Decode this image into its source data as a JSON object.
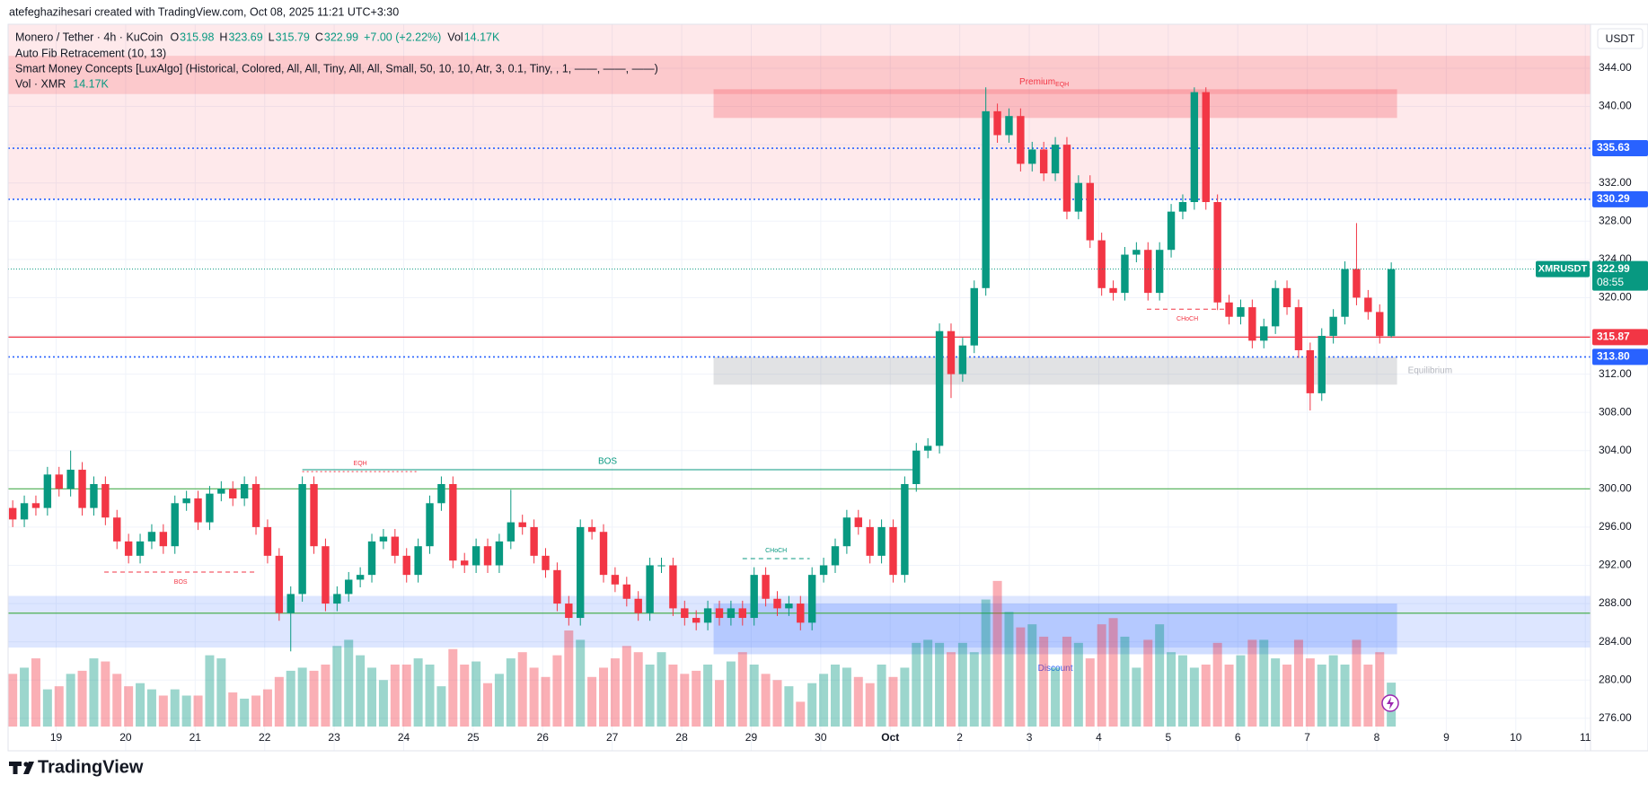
{
  "header": "atefeghazihesari created with TradingView.com, Oct 08, 2025 11:21 UTC+3:30",
  "legend": {
    "symbol": "Monero / Tether · 4h · KuCoin",
    "ohlc": [
      {
        "key": "O",
        "value": "315.98"
      },
      {
        "key": "H",
        "value": "323.69"
      },
      {
        "key": "L",
        "value": "315.79"
      },
      {
        "key": "C",
        "value": "322.99"
      }
    ],
    "change": "+7.00 (+2.22%)",
    "vol_key": "Vol",
    "vol_value": "14.17K",
    "indicators": [
      "Auto Fib Retracement (10, 13)",
      "Smart Money Concepts [LuxAlgo] (Historical, Colored, All, All, Tiny, All, All, Small, 50, 10, 10, Atr, 3, 0.1, Tiny, , 1, ——, ——, ——)"
    ],
    "vol_indicator": "Vol · XMR",
    "vol_indicator_value": "14.17K"
  },
  "brand": "TradingView",
  "chart_data": {
    "type": "candlestick",
    "currency": "USDT",
    "up_color": "#089981",
    "down_color": "#f23645",
    "open": [
      298.0,
      296.8,
      298.5,
      298.0,
      301.5,
      300.0,
      302.0,
      298.0,
      300.5,
      297.0,
      294.5,
      293.0,
      294.5,
      295.5,
      294.0,
      298.5,
      299.0,
      296.5,
      299.5,
      300.0,
      299.0,
      300.5,
      296.0,
      293.0,
      287.0,
      289.0,
      300.5,
      294.0,
      288.0,
      289.0,
      290.5,
      291.0,
      294.5,
      295.0,
      293.0,
      291.0,
      294.0,
      298.5,
      300.5,
      292.5,
      292.0,
      294.0,
      292.0,
      294.5,
      296.5,
      296.0,
      293.0,
      291.5,
      288.0,
      286.5,
      296.0,
      295.5,
      291.0,
      290.0,
      288.5,
      287.0,
      292.0,
      292.0,
      287.5,
      286.5,
      286.0,
      287.5,
      286.5,
      287.5,
      286.5,
      291.0,
      288.5,
      287.5,
      288.0,
      286.0,
      291.0,
      292.0,
      294.0,
      297.0,
      296.0,
      293.0,
      296.0,
      291.0,
      300.5,
      304.0,
      304.5,
      316.5,
      312.0,
      315.0,
      321.0,
      339.5,
      337.0,
      339.0,
      334.0,
      335.5,
      333.0,
      336.0,
      329.0,
      332.0,
      326.0,
      321.0,
      320.5,
      324.5,
      325.0,
      320.5,
      325.0,
      329.0,
      330.0,
      341.5,
      330.0,
      319.5,
      318.0,
      319.0,
      315.5,
      317.0,
      321.0,
      319.0,
      314.5,
      310.0,
      316.0,
      318.0,
      323.0,
      320.0,
      318.5,
      315.98
    ],
    "high": [
      298.8,
      299.3,
      299.3,
      302.3,
      302.3,
      304.0,
      302.8,
      301.3,
      301.3,
      297.8,
      295.3,
      295.3,
      296.3,
      296.3,
      299.3,
      299.8,
      299.8,
      300.3,
      300.8,
      300.8,
      301.3,
      301.3,
      296.8,
      293.8,
      289.8,
      301.3,
      301.3,
      294.8,
      289.8,
      291.3,
      291.8,
      295.3,
      295.8,
      295.8,
      293.8,
      294.8,
      299.3,
      301.3,
      301.3,
      293.3,
      294.8,
      294.8,
      295.3,
      299.9,
      297.3,
      296.8,
      293.8,
      292.3,
      288.8,
      296.8,
      296.8,
      296.3,
      291.8,
      290.8,
      289.3,
      292.8,
      292.8,
      292.8,
      288.3,
      287.3,
      288.3,
      288.3,
      288.3,
      288.3,
      291.8,
      291.8,
      289.3,
      288.8,
      288.8,
      291.8,
      292.8,
      294.8,
      297.8,
      297.8,
      296.8,
      296.8,
      296.8,
      301.3,
      304.8,
      305.3,
      317.3,
      317.3,
      315.8,
      321.8,
      342.0,
      340.3,
      339.8,
      339.8,
      336.3,
      336.3,
      336.8,
      336.8,
      332.8,
      332.8,
      326.8,
      321.8,
      325.3,
      325.8,
      325.8,
      325.8,
      329.8,
      330.8,
      342.0,
      342.0,
      330.8,
      320.3,
      319.8,
      319.8,
      317.8,
      321.8,
      321.8,
      319.8,
      315.3,
      316.8,
      318.8,
      323.8,
      327.8,
      320.8,
      319.3,
      323.69
    ],
    "low": [
      296.0,
      296.0,
      297.2,
      297.2,
      299.2,
      299.2,
      297.2,
      297.2,
      296.2,
      293.7,
      292.2,
      292.2,
      293.7,
      293.2,
      293.2,
      297.7,
      295.7,
      295.7,
      298.7,
      298.2,
      298.2,
      295.2,
      292.2,
      286.2,
      283.0,
      288.2,
      293.2,
      287.2,
      287.2,
      288.2,
      289.7,
      290.2,
      293.7,
      292.2,
      290.2,
      290.2,
      293.2,
      297.7,
      291.7,
      291.2,
      291.2,
      291.2,
      291.2,
      293.7,
      295.2,
      292.2,
      290.7,
      287.2,
      285.7,
      285.7,
      294.7,
      290.2,
      289.2,
      287.7,
      286.2,
      286.2,
      291.2,
      286.7,
      285.7,
      285.2,
      285.2,
      285.7,
      285.7,
      285.7,
      285.7,
      287.7,
      286.7,
      286.7,
      285.2,
      285.2,
      290.2,
      291.2,
      293.2,
      295.2,
      292.2,
      292.2,
      290.2,
      290.2,
      299.7,
      303.2,
      303.7,
      309.5,
      311.2,
      314.2,
      320.2,
      336.2,
      336.2,
      333.2,
      333.2,
      332.2,
      332.2,
      328.2,
      328.2,
      325.2,
      320.2,
      319.7,
      319.7,
      323.7,
      319.7,
      319.7,
      324.2,
      328.2,
      329.2,
      329.2,
      318.7,
      317.2,
      317.2,
      314.7,
      314.7,
      316.2,
      318.2,
      313.7,
      308.2,
      309.2,
      315.2,
      317.2,
      319.2,
      317.7,
      315.2,
      315.79
    ],
    "close": [
      296.8,
      298.5,
      298.0,
      301.5,
      300.0,
      302.0,
      298.0,
      300.5,
      297.0,
      294.5,
      293.0,
      294.5,
      295.5,
      294.0,
      298.5,
      299.0,
      296.5,
      299.5,
      300.0,
      299.0,
      300.5,
      296.0,
      293.0,
      287.0,
      289.0,
      300.5,
      294.0,
      288.0,
      289.0,
      290.5,
      291.0,
      294.5,
      295.0,
      293.0,
      291.0,
      294.0,
      298.5,
      300.5,
      292.5,
      292.0,
      294.0,
      292.0,
      294.5,
      296.5,
      296.0,
      293.0,
      291.5,
      288.0,
      286.5,
      296.0,
      295.5,
      291.0,
      290.0,
      288.5,
      287.0,
      292.0,
      292.0,
      287.5,
      286.5,
      286.0,
      287.5,
      286.5,
      287.5,
      286.5,
      291.0,
      288.5,
      287.5,
      288.0,
      286.0,
      291.0,
      292.0,
      294.0,
      297.0,
      296.0,
      293.0,
      296.0,
      291.0,
      300.5,
      304.0,
      304.5,
      316.5,
      312.0,
      315.0,
      321.0,
      339.5,
      337.0,
      339.0,
      334.0,
      335.5,
      333.0,
      336.0,
      329.0,
      332.0,
      326.0,
      321.0,
      320.5,
      324.5,
      325.0,
      320.5,
      325.0,
      329.0,
      330.0,
      341.5,
      330.0,
      319.5,
      318.0,
      319.0,
      315.5,
      317.0,
      321.0,
      319.0,
      314.5,
      310.0,
      316.0,
      318.0,
      323.0,
      320.0,
      318.5,
      315.98,
      322.99
    ],
    "volume": [
      17,
      19,
      22,
      12,
      13,
      17,
      18,
      22,
      21,
      17,
      13,
      14,
      12,
      10,
      12,
      10,
      10,
      23,
      22,
      11,
      9,
      10,
      12,
      16,
      18,
      19,
      18,
      20,
      26,
      28,
      23,
      19,
      15,
      20,
      20,
      22,
      20,
      13,
      25,
      20,
      21,
      14,
      17,
      22,
      24,
      19,
      16,
      23,
      31,
      28,
      16,
      19,
      22,
      26,
      24,
      20,
      24,
      20,
      17,
      18,
      20,
      15,
      21,
      24,
      20,
      17,
      15,
      13,
      8,
      14,
      17,
      20,
      19,
      16,
      14,
      20,
      16,
      19,
      27,
      28,
      27,
      24,
      27,
      24,
      41,
      47,
      37,
      32,
      33,
      29,
      19,
      29,
      27,
      22,
      33,
      35,
      29,
      19,
      28,
      33,
      24,
      23,
      19,
      20,
      27,
      20,
      23,
      28,
      28,
      22,
      20,
      28,
      22,
      20,
      23,
      20,
      28,
      20,
      24,
      14.17
    ],
    "xlim": [
      -0.4,
      136.2
    ],
    "xticks": [
      {
        "value": 3.75,
        "label": "19"
      },
      {
        "value": 9.75,
        "label": "20"
      },
      {
        "value": 15.75,
        "label": "21"
      },
      {
        "value": 21.75,
        "label": "22"
      },
      {
        "value": 27.75,
        "label": "23"
      },
      {
        "value": 33.75,
        "label": "24"
      },
      {
        "value": 39.75,
        "label": "25"
      },
      {
        "value": 45.75,
        "label": "26"
      },
      {
        "value": 51.75,
        "label": "27"
      },
      {
        "value": 57.75,
        "label": "28"
      },
      {
        "value": 63.75,
        "label": "29"
      },
      {
        "value": 69.75,
        "label": "30"
      },
      {
        "value": 75.75,
        "label": "Oct"
      },
      {
        "value": 81.75,
        "label": "2"
      },
      {
        "value": 87.75,
        "label": "3"
      },
      {
        "value": 93.75,
        "label": "4"
      },
      {
        "value": 99.75,
        "label": "5"
      },
      {
        "value": 105.75,
        "label": "6"
      },
      {
        "value": 111.75,
        "label": "7"
      },
      {
        "value": 117.75,
        "label": "8"
      },
      {
        "value": 123.75,
        "label": "9"
      },
      {
        "value": 129.75,
        "label": "10"
      },
      {
        "value": 135.75,
        "label": "11"
      }
    ],
    "ylim": [
      272.6,
      348.6
    ],
    "yticks": [
      {
        "value": 276,
        "label": "276.00"
      },
      {
        "value": 280,
        "label": "280.00"
      },
      {
        "value": 284,
        "label": "284.00"
      },
      {
        "value": 288,
        "label": "288.00"
      },
      {
        "value": 292,
        "label": "292.00"
      },
      {
        "value": 296,
        "label": "296.00"
      },
      {
        "value": 300,
        "label": "300.00"
      },
      {
        "value": 304,
        "label": "304.00"
      },
      {
        "value": 308,
        "label": "308.00"
      },
      {
        "value": 312,
        "label": "312.00"
      },
      {
        "value": 316,
        "label": "316.00"
      },
      {
        "value": 320,
        "label": "320.00"
      },
      {
        "value": 324,
        "label": "324.00"
      },
      {
        "value": 328,
        "label": "328.00"
      },
      {
        "value": 332,
        "label": "332.00"
      },
      {
        "value": 336,
        "label": "336.00"
      },
      {
        "value": 340,
        "label": "340.00"
      },
      {
        "value": 344,
        "label": "344.00"
      }
    ],
    "grid": true,
    "zones": [
      {
        "top": 348.6,
        "bottom": 330.29,
        "color": "rgba(242,54,69,0.11)"
      },
      {
        "top": 345.3,
        "bottom": 341.3,
        "color": "rgba(242,54,69,0.18)"
      },
      {
        "top": 288.8,
        "bottom": 283.4,
        "color": "rgba(41,98,255,0.16)"
      },
      {
        "top": 341.8,
        "bottom": 338.8,
        "from": 60.5,
        "to": 119.5,
        "color": "rgba(242,54,69,0.25)",
        "label": "Premium",
        "sublabel": "EQH",
        "label_pos": "top",
        "label_color": "#f23645"
      },
      {
        "top": 313.8,
        "bottom": 310.9,
        "from": 60.5,
        "to": 119.5,
        "color": "rgba(120,123,134,0.22)",
        "label": "Equilibrium",
        "label_pos": "right",
        "label_color": "#b2b5be"
      },
      {
        "top": 288.0,
        "bottom": 282.7,
        "from": 60.5,
        "to": 119.5,
        "color": "rgba(41,98,255,0.22)",
        "label": "Discount",
        "label_pos": "bottom",
        "label_color": "#2962ff"
      }
    ],
    "levels": [
      {
        "value": 335.63,
        "label": "335.63",
        "color": "#2962ff",
        "style": "dotted"
      },
      {
        "value": 330.29,
        "label": "330.29",
        "color": "#2962ff",
        "style": "dotted"
      },
      {
        "value": 315.87,
        "label": "315.87",
        "color": "#f23645",
        "style": "solid"
      },
      {
        "value": 313.8,
        "label": "313.80",
        "color": "#2962ff",
        "style": "dotted"
      },
      {
        "value": 300.0,
        "color": "#4caf50",
        "style": "solid"
      },
      {
        "value": 287.0,
        "color": "#4caf50",
        "style": "solid"
      }
    ],
    "last_price": {
      "value": 322.99,
      "symbol": "XMRUSDT",
      "label": "322.99",
      "countdown": "08:55",
      "color": "#089981"
    },
    "structures": [
      {
        "label": "BOS",
        "price": 302.0,
        "from": 25,
        "to": 77.7,
        "color": "#089981",
        "style": "solid"
      },
      {
        "label": "EQH",
        "price": 301.8,
        "from": 25,
        "to": 35,
        "color": "#f23645",
        "style": "dotted"
      },
      {
        "label": "BOS",
        "price": 291.3,
        "from": 7.9,
        "to": 21.1,
        "color": "#f23645",
        "style": "dashed"
      },
      {
        "label": "CHoCH",
        "price": 292.7,
        "from": 63,
        "to": 68.8,
        "color": "#089981",
        "style": "dashed"
      },
      {
        "label": "CHoCH",
        "price": 318.8,
        "from": 97.9,
        "to": 104.9,
        "color": "#f23645",
        "style": "dashed"
      }
    ]
  }
}
